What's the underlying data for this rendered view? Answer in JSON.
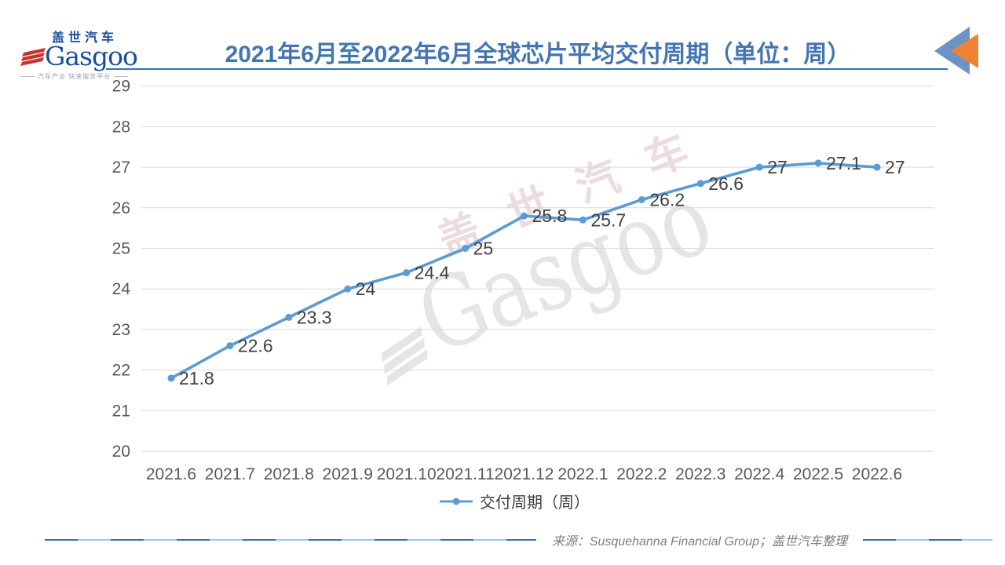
{
  "header": {
    "logo": {
      "cn": "盖世汽车",
      "en": "Gasgoo",
      "tagline": "汽车产业 快速服务平台"
    },
    "title": "2021年6月至2022年6月全球芯片平均交付周期（单位：周）"
  },
  "watermark": {
    "cn": "盖世汽车",
    "en": "Gasgoo"
  },
  "chart_data": {
    "type": "line",
    "title": "2021年6月至2022年6月全球芯片平均交付周期（单位：周）",
    "categories": [
      "2021.6",
      "2021.7",
      "2021.8",
      "2021.9",
      "2021.10",
      "2021.11",
      "2021.12",
      "2022.1",
      "2022.2",
      "2022.3",
      "2022.4",
      "2022.5",
      "2022.6"
    ],
    "series": [
      {
        "name": "交付周期（周）",
        "values": [
          21.8,
          22.6,
          23.3,
          24,
          24.4,
          25,
          25.8,
          25.7,
          26.2,
          26.6,
          27,
          27.1,
          27
        ]
      }
    ],
    "xlabel": "",
    "ylabel": "",
    "ylim": [
      20,
      29
    ],
    "ytick_step": 1,
    "grid": true,
    "legend_position": "bottom"
  },
  "footer": {
    "source": "来源：Susquehanna Financial Group；盖世汽车整理"
  },
  "colors": {
    "title": "#4376b0",
    "underline": "#2e74b5",
    "line": "#5b9bd5",
    "grid": "#d9d9d9",
    "tick": "#595959",
    "data_label": "#404040",
    "source": "#7f7f7f",
    "logo_blue": "#1a4c9c",
    "logo_red": "#c9342f",
    "arrow_blue": "#6d92c4",
    "arrow_orange": "#ee8336",
    "rule_dark": "#41719c",
    "rule_light": "#a5c6e4",
    "watermark_gray": "#e3e3e3",
    "watermark_pink": "#e9dada"
  }
}
